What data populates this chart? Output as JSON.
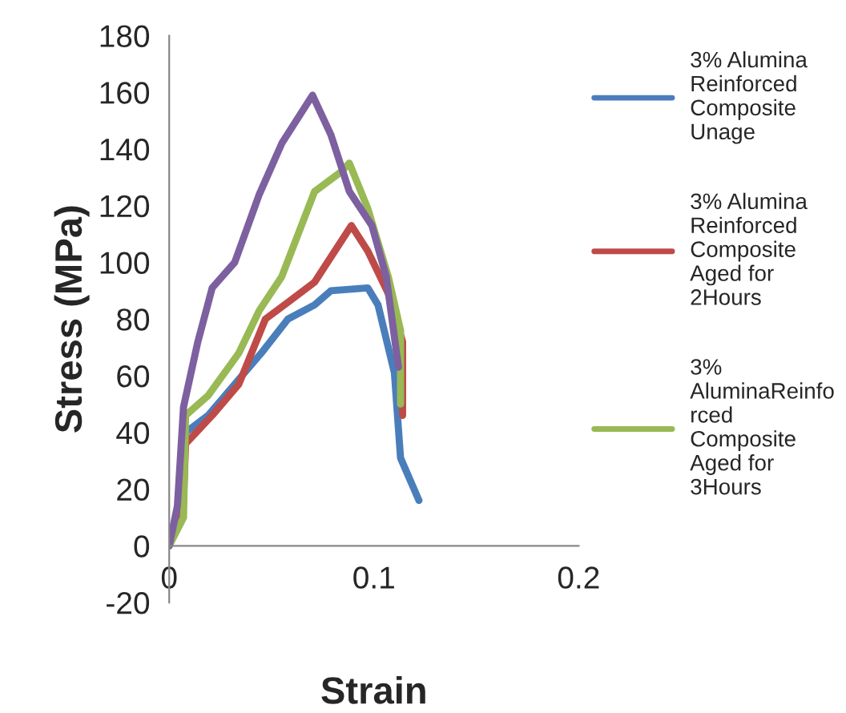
{
  "chart_data": {
    "type": "line",
    "xlabel": "Strain",
    "ylabel": "Stress (MPa)",
    "xlim": [
      0,
      0.2
    ],
    "xticks": [
      0,
      0.1,
      0.2
    ],
    "ylim": [
      -20,
      180
    ],
    "yticks": [
      -20,
      0,
      20,
      40,
      60,
      80,
      100,
      120,
      140,
      160,
      180
    ],
    "grid": false,
    "legend": "right",
    "marker": "none",
    "line_style": "solid",
    "series": [
      {
        "name": "3% Alumina Reinforced Composite Unage",
        "color": "#4a7ebb",
        "x": [
          0,
          0.006,
          0.008,
          0.019,
          0.032,
          0.045,
          0.058,
          0.071,
          0.079,
          0.097,
          0.102,
          0.11,
          0.113,
          0.122
        ],
        "values": [
          0,
          16,
          40,
          46,
          57,
          68,
          80,
          85,
          90,
          91,
          85,
          61,
          31,
          16
        ]
      },
      {
        "name": "3% Alumina Reinforced Composite Aged for 2Hours",
        "color": "#be4b48",
        "x": [
          0,
          0.007,
          0.008,
          0.021,
          0.034,
          0.047,
          0.06,
          0.071,
          0.089,
          0.097,
          0.107,
          0.114,
          0.114
        ],
        "values": [
          0,
          16,
          36,
          46,
          57,
          80,
          87,
          93,
          113,
          104,
          89,
          72,
          46
        ]
      },
      {
        "name": "3% AluminaReinforced Composite Aged for 3Hours",
        "color": "#98b954",
        "x": [
          0,
          0.007,
          0.008,
          0.019,
          0.034,
          0.044,
          0.055,
          0.071,
          0.084,
          0.088,
          0.097,
          0.107,
          0.113,
          0.113
        ],
        "values": [
          0,
          10,
          46,
          53,
          68,
          83,
          95,
          125,
          132,
          135,
          119,
          95,
          76,
          50
        ]
      },
      {
        "color": "#7d60a0",
        "x": [
          0,
          0.004,
          0.007,
          0.014,
          0.021,
          0.032,
          0.044,
          0.055,
          0.07,
          0.079,
          0.088,
          0.099,
          0.106,
          0.112
        ],
        "values": [
          0,
          14,
          49,
          72,
          91,
          100,
          124,
          142,
          159,
          145,
          125,
          113,
          95,
          63
        ]
      }
    ]
  }
}
